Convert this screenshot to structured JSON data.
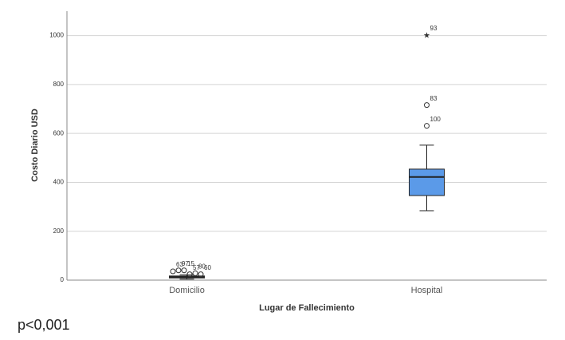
{
  "chart_data": {
    "type": "box",
    "x_label": "Lugar de Fallecimiento",
    "y_label": "Costo Diario USD",
    "footnote": "p<0,001",
    "categories": [
      "Domicilio",
      "Hospital"
    ],
    "boxes": [
      {
        "whisker_low": 4,
        "q1": 9,
        "median": 13,
        "q3": 17,
        "whisker_high": 22,
        "outliers": [
          {
            "value": 36,
            "case": "63"
          },
          {
            "value": 40,
            "case": "97"
          },
          {
            "value": 40,
            "case": "15"
          },
          {
            "value": 24,
            "case": "57"
          },
          {
            "value": 28,
            "case": "80"
          },
          {
            "value": 24,
            "case": "60"
          }
        ]
      },
      {
        "whisker_low": 284,
        "q1": 346,
        "median": 422,
        "q3": 454,
        "whisker_high": 552,
        "outliers": [
          {
            "value": 631,
            "case": "100"
          },
          {
            "value": 716,
            "case": "83"
          },
          {
            "value": 1003,
            "case": "93",
            "marker": "star"
          }
        ]
      }
    ],
    "color": "#5b9ae8",
    "ylim": [
      0,
      1100
    ],
    "yticks": [
      0,
      200,
      400,
      600,
      800,
      1000
    ],
    "grid": true
  }
}
